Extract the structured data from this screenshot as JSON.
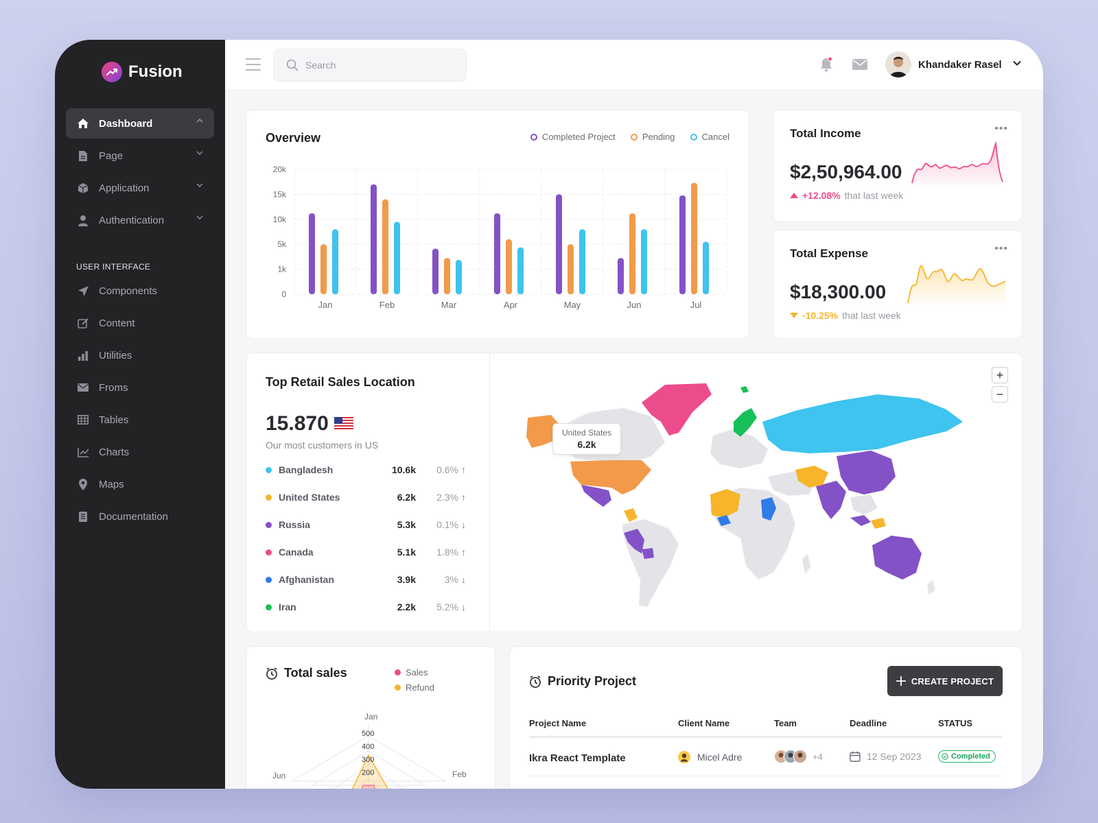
{
  "app": {
    "name": "Fusion"
  },
  "sidebar": {
    "items": [
      {
        "label": "Dashboard",
        "icon": "home-icon",
        "active": true
      },
      {
        "label": "Page",
        "icon": "file-icon"
      },
      {
        "label": "Application",
        "icon": "box-icon"
      },
      {
        "label": "Authentication",
        "icon": "user-icon"
      }
    ],
    "section_title": "USER INTERFACE",
    "ui_items": [
      {
        "label": "Components",
        "icon": "send-icon"
      },
      {
        "label": "Content",
        "icon": "edit-icon"
      },
      {
        "label": "Utilities",
        "icon": "bar-icon"
      },
      {
        "label": "Froms",
        "icon": "mail-icon"
      },
      {
        "label": "Tables",
        "icon": "table-icon"
      },
      {
        "label": "Charts",
        "icon": "line-chart-icon"
      },
      {
        "label": "Maps",
        "icon": "pin-icon"
      },
      {
        "label": "Documentation",
        "icon": "doc-icon"
      }
    ]
  },
  "header": {
    "search_placeholder": "Search",
    "user_name": "Khandaker Rasel"
  },
  "overview": {
    "title": "Overview",
    "legend": [
      "Completed Project",
      "Pending",
      "Cancel"
    ],
    "colors": [
      "#8352c6",
      "#f29a4a",
      "#3fc3ef"
    ]
  },
  "chart_data": {
    "type": "bar",
    "title": "Overview",
    "categories": [
      "Jan",
      "Feb",
      "Mar",
      "Apr",
      "May",
      "Jun",
      "Jul"
    ],
    "y_ticks": [
      "20k",
      "15k",
      "10k",
      "5k",
      "1k",
      "0"
    ],
    "series": [
      {
        "name": "Completed Project",
        "values": [
          11200,
          17000,
          4300,
          11200,
          15000,
          2800,
          14800
        ]
      },
      {
        "name": "Pending",
        "values": [
          5000,
          14000,
          2800,
          6000,
          5000,
          11200,
          17300
        ]
      },
      {
        "name": "Cancel",
        "values": [
          8000,
          9500,
          2500,
          4500,
          8000,
          8000,
          5500
        ]
      }
    ]
  },
  "income": {
    "title": "Total Income",
    "amount": "$2,50,964.00",
    "change": "+12.08%",
    "suffix": "that last week",
    "color": "#ec4c8c"
  },
  "expense": {
    "title": "Total Expense",
    "amount": "$18,300.00",
    "change": "-10.25%",
    "suffix": "that last week",
    "color": "#f7b52c"
  },
  "retail": {
    "title": "Top Retail Sales Location",
    "total": "15.870",
    "subtitle": "Our most customers in US",
    "rows": [
      {
        "country": "Bangladesh",
        "value": "10.6k",
        "pct": "0.6%",
        "dir": "up",
        "color": "#3fc3ef"
      },
      {
        "country": "United States",
        "value": "6.2k",
        "pct": "2.3%",
        "dir": "up",
        "color": "#f7b52c"
      },
      {
        "country": "Russia",
        "value": "5.3k",
        "pct": "0.1%",
        "dir": "down",
        "color": "#8352c6"
      },
      {
        "country": "Canada",
        "value": "5.1k",
        "pct": "1.8%",
        "dir": "up",
        "color": "#ec4c8c"
      },
      {
        "country": "Afghanistan",
        "value": "3.9k",
        "pct": "3%",
        "dir": "down",
        "color": "#2f7be8"
      },
      {
        "country": "Iran",
        "value": "2.2k",
        "pct": "5.2%",
        "dir": "down",
        "color": "#18c05a"
      }
    ],
    "map_tooltip": {
      "label": "United States",
      "value": "6.2k"
    },
    "zoom_in": "+",
    "zoom_out": "−"
  },
  "sales": {
    "title": "Total sales",
    "legend": [
      "Sales",
      "Refund"
    ],
    "radar_labels": [
      "Jan",
      "Feb",
      "Jun"
    ],
    "radar_ticks": [
      "500",
      "400",
      "300",
      "200"
    ]
  },
  "priority": {
    "title": "Priority Project",
    "button": "CREATE PROJECT",
    "columns": [
      "Project Name",
      "Client Name",
      "Team",
      "Deadline",
      "STATUS"
    ],
    "rows": [
      {
        "project": "Ikra React Template",
        "client": "Micel Adre",
        "team_more": "+4",
        "deadline": "12 Sep 2023",
        "status": "Completed"
      }
    ]
  }
}
